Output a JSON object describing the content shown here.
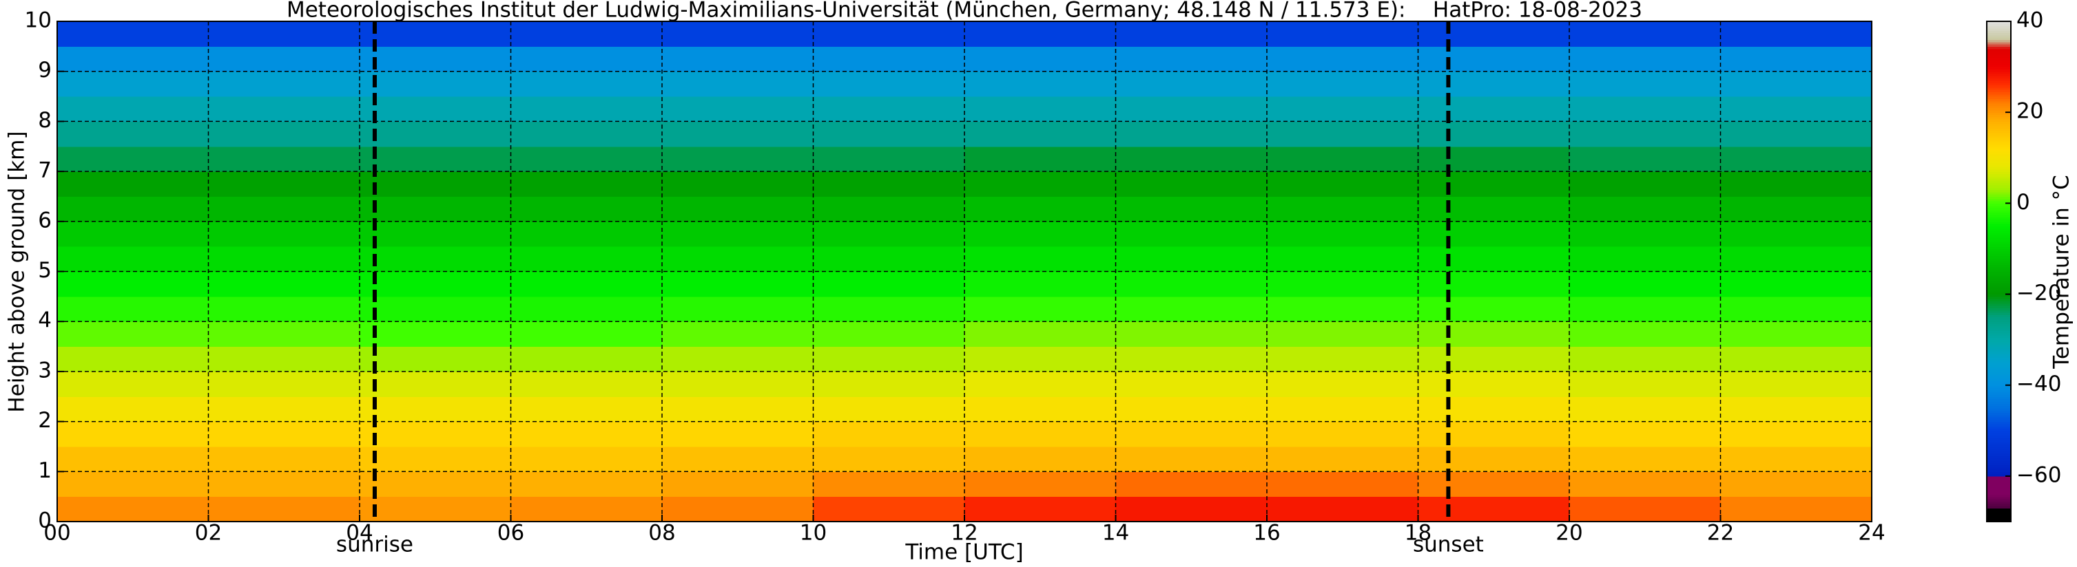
{
  "chart_data": {
    "type": "heatmap",
    "title": "Meteorologisches Institut der Ludwig-Maximilians-Universität (München, Germany; 48.148 N / 11.573 E):    HatPro: 18-08-2023",
    "x_label": "Time [UTC]",
    "y_label": "Height above ground [km]",
    "x_edges": [
      0,
      2,
      4,
      6,
      8,
      10,
      12,
      14,
      16,
      18,
      20,
      22,
      24
    ],
    "y_edges": [
      0,
      0.5,
      1,
      1.5,
      2,
      2.5,
      3,
      3.5,
      4,
      4.5,
      5,
      5.5,
      6,
      6.5,
      7,
      7.5,
      8,
      8.5,
      9,
      9.5,
      10
    ],
    "z": [
      [
        21,
        21,
        20,
        21,
        22,
        25,
        27,
        28,
        28,
        27,
        24,
        22
      ],
      [
        18,
        18,
        18,
        18,
        19,
        21,
        22,
        23,
        23,
        22,
        20,
        19
      ],
      [
        16,
        16,
        15,
        15,
        16,
        16,
        17,
        17,
        17,
        17,
        16,
        16
      ],
      [
        13,
        13,
        13,
        13,
        13,
        14,
        14,
        14,
        14,
        14,
        13,
        13
      ],
      [
        10,
        10,
        10,
        10,
        10,
        10,
        11,
        11,
        11,
        11,
        10,
        10
      ],
      [
        7,
        7,
        7,
        7,
        7,
        7,
        8,
        8,
        8,
        8,
        7,
        7
      ],
      [
        4,
        4,
        3,
        3,
        4,
        4,
        5,
        5,
        5,
        5,
        4,
        4
      ],
      [
        1,
        1,
        0,
        0,
        1,
        1,
        2,
        2,
        2,
        2,
        1,
        1
      ],
      [
        -2,
        -2,
        -3,
        -3,
        -2,
        -2,
        -1,
        -1,
        -1,
        -1,
        -2,
        -2
      ],
      [
        -5,
        -5,
        -5,
        -5,
        -5,
        -5,
        -4,
        -4,
        -4,
        -4,
        -5,
        -5
      ],
      [
        -8,
        -8,
        -8,
        -8,
        -8,
        -8,
        -7,
        -7,
        -7,
        -7,
        -8,
        -8
      ],
      [
        -11,
        -11,
        -11,
        -11,
        -11,
        -11,
        -10,
        -10,
        -10,
        -10,
        -11,
        -11
      ],
      [
        -14,
        -14,
        -14,
        -14,
        -14,
        -14,
        -13,
        -13,
        -13,
        -13,
        -14,
        -14
      ],
      [
        -18,
        -18,
        -18,
        -18,
        -18,
        -18,
        -17,
        -17,
        -17,
        -17,
        -18,
        -18
      ],
      [
        -23,
        -23,
        -23,
        -23,
        -23,
        -23,
        -22,
        -22,
        -22,
        -22,
        -23,
        -23
      ],
      [
        -27,
        -27,
        -27,
        -27,
        -27,
        -27,
        -27,
        -27,
        -27,
        -27,
        -27,
        -27
      ],
      [
        -31,
        -31,
        -31,
        -31,
        -31,
        -31,
        -31,
        -31,
        -31,
        -31,
        -31,
        -31
      ],
      [
        -35,
        -35,
        -35,
        -35,
        -35,
        -35,
        -35,
        -35,
        -35,
        -35,
        -35,
        -35
      ],
      [
        -40,
        -40,
        -40,
        -40,
        -40,
        -40,
        -40,
        -40,
        -40,
        -40,
        -40,
        -40
      ],
      [
        -50,
        -50,
        -50,
        -50,
        -50,
        -50,
        -50,
        -50,
        -50,
        -50,
        -50,
        -50
      ]
    ],
    "xlim": [
      0,
      24
    ],
    "ylim": [
      0,
      10
    ],
    "xticks": [
      {
        "value": 0,
        "label": "00"
      },
      {
        "value": 2,
        "label": "02"
      },
      {
        "value": 4,
        "label": "04"
      },
      {
        "value": 6,
        "label": "06"
      },
      {
        "value": 8,
        "label": "08"
      },
      10,
      12,
      14,
      16,
      18,
      20,
      22,
      24
    ],
    "yticks": [
      0,
      1,
      2,
      3,
      4,
      5,
      6,
      7,
      8,
      9,
      10
    ],
    "grid": true,
    "annotations": [
      {
        "text": "sunrise",
        "x": 4.2
      },
      {
        "text": "sunset",
        "x": 18.4
      }
    ],
    "colorbar": {
      "label": "Temperature in °C",
      "clim": [
        -70,
        40
      ],
      "ticks": [
        {
          "value": -60,
          "label": "−60"
        },
        {
          "value": -40,
          "label": "−40"
        },
        {
          "value": -20,
          "label": "−20"
        },
        0,
        20,
        40
      ]
    },
    "colormap": [
      [
        -70,
        "#000000"
      ],
      [
        -67,
        "#000000"
      ],
      [
        -66.9,
        "#500040"
      ],
      [
        -64,
        "#800060"
      ],
      [
        -60,
        "#800060"
      ],
      [
        -59.9,
        "#0020c0"
      ],
      [
        -50,
        "#0040e0"
      ],
      [
        -45,
        "#0070e0"
      ],
      [
        -40,
        "#0090e0"
      ],
      [
        -35,
        "#00a0d0"
      ],
      [
        -30,
        "#00a8a8"
      ],
      [
        -25,
        "#00a080"
      ],
      [
        -20,
        "#009900"
      ],
      [
        -15,
        "#00b000"
      ],
      [
        -10,
        "#00d000"
      ],
      [
        -5,
        "#00ee00"
      ],
      [
        0,
        "#40ff00"
      ],
      [
        3,
        "#a0f000"
      ],
      [
        8,
        "#e8e800"
      ],
      [
        12,
        "#ffdd00"
      ],
      [
        18,
        "#ffb000"
      ],
      [
        22,
        "#ff8000"
      ],
      [
        26,
        "#ff3000"
      ],
      [
        30,
        "#ee0000"
      ],
      [
        34,
        "#e00000"
      ],
      [
        36,
        "#c8c8a0"
      ],
      [
        40,
        "#e0e0e0"
      ]
    ]
  }
}
